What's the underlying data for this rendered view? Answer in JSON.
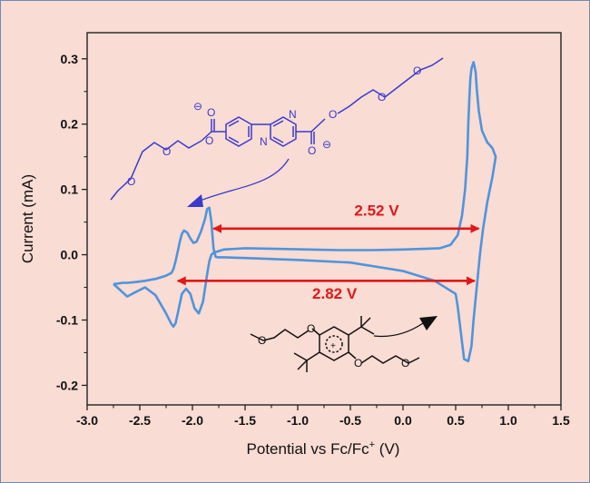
{
  "chart_data": {
    "type": "line",
    "title": "",
    "xlabel": "Potential vs Fc/Fc",
    "xlabel_sup": "+",
    "xlabel_unit": " (V)",
    "ylabel": "Current (mA)",
    "xlim": [
      -3.0,
      1.5
    ],
    "ylim": [
      -0.23,
      0.34
    ],
    "x_ticks": [
      -3.0,
      -2.5,
      -2.0,
      -1.5,
      -1.0,
      -0.5,
      0.0,
      0.5,
      1.0,
      1.5
    ],
    "x_tick_labels": [
      "-3.0",
      "-2.5",
      "-2.0",
      "-1.5",
      "-1.0",
      "-0.5",
      "0.0",
      "0.5",
      "1.0",
      "1.5"
    ],
    "y_ticks": [
      -0.2,
      -0.1,
      0.0,
      0.1,
      0.2,
      0.3
    ],
    "y_tick_labels": [
      "-0.2",
      "-0.1",
      "0.0",
      "0.1",
      "0.2",
      "0.3"
    ],
    "grid": false,
    "line_color": "#4f94dd",
    "series": [
      {
        "x": [
          -2.75,
          -2.7,
          -2.62,
          -2.55,
          -2.45,
          -2.35,
          -2.25,
          -2.2,
          -2.18,
          -2.16,
          -2.14,
          -2.1,
          -2.06,
          -2.02,
          -1.98,
          -1.94,
          -1.9,
          -1.86,
          -1.84,
          -1.82,
          -1.8,
          -1.7,
          -1.5,
          -1.2,
          -0.9,
          -0.6,
          -0.3,
          0.0,
          0.2,
          0.35,
          0.45,
          0.52,
          0.56,
          0.59,
          0.61,
          0.62,
          0.63,
          0.64,
          0.65,
          0.67,
          0.69,
          0.7,
          0.72,
          0.75,
          0.8,
          0.85,
          0.88,
          0.85,
          0.8,
          0.76,
          0.73,
          0.7,
          0.67,
          0.65,
          0.62,
          0.58,
          0.55,
          0.52,
          0.5,
          0.3,
          0.0,
          -0.5,
          -1.0,
          -1.5,
          -1.7,
          -1.76,
          -1.78,
          -1.8,
          -1.82,
          -1.84,
          -1.86,
          -1.88,
          -1.92,
          -1.96,
          -1.99,
          -2.02,
          -2.05,
          -2.08,
          -2.1,
          -2.12,
          -2.14,
          -2.16,
          -2.18,
          -2.2,
          -2.25,
          -2.35,
          -2.45,
          -2.55,
          -2.62,
          -2.66,
          -2.7,
          -2.75
        ],
        "y": [
          -0.045,
          -0.052,
          -0.064,
          -0.058,
          -0.05,
          -0.062,
          -0.09,
          -0.106,
          -0.11,
          -0.105,
          -0.09,
          -0.06,
          -0.052,
          -0.06,
          -0.082,
          -0.09,
          -0.072,
          -0.03,
          -0.01,
          0.0,
          0.003,
          0.008,
          0.01,
          0.009,
          0.008,
          0.007,
          0.007,
          0.008,
          0.009,
          0.01,
          0.015,
          0.03,
          0.06,
          0.1,
          0.15,
          0.2,
          0.24,
          0.27,
          0.285,
          0.295,
          0.28,
          0.255,
          0.22,
          0.19,
          0.172,
          0.163,
          0.15,
          0.12,
          0.08,
          0.04,
          0.0,
          -0.05,
          -0.1,
          -0.14,
          -0.163,
          -0.16,
          -0.12,
          -0.08,
          -0.06,
          -0.04,
          -0.025,
          -0.012,
          -0.008,
          -0.005,
          -0.004,
          -0.004,
          -0.003,
          0.01,
          0.05,
          0.072,
          0.07,
          0.055,
          0.035,
          0.02,
          0.018,
          0.025,
          0.034,
          0.037,
          0.032,
          0.02,
          0.005,
          -0.01,
          -0.022,
          -0.028,
          -0.032,
          -0.037,
          -0.04,
          -0.042,
          -0.043,
          -0.043,
          -0.044,
          -0.045
        ]
      }
    ],
    "annotations": [
      {
        "text": "2.52 V",
        "x1": -1.8,
        "x2": 0.72,
        "y": 0.04,
        "label_x": -0.25,
        "label_y": 0.06,
        "color": "#e01818"
      },
      {
        "text": "2.82 V",
        "x1": -2.14,
        "x2": 0.68,
        "y": -0.04,
        "label_x": -0.65,
        "label_y": -0.067,
        "color": "#e01818"
      }
    ]
  },
  "molecule_top": {
    "atoms": {
      "n_left": "N",
      "n_right": "N",
      "o_charge_left": "⊖",
      "o_charge_right": "⊖",
      "o_a": "O",
      "o_b": "O",
      "o_c": "O",
      "o_d": "O",
      "o_e": "O",
      "o_f": "O",
      "o_g": "O",
      "o_h": "O",
      "o_i": "O",
      "o_j": "O"
    },
    "color": "#3a3acc"
  },
  "molecule_bottom": {
    "atoms": {
      "o_a": "O",
      "o_b": "O",
      "o_c": "O",
      "o_d": "O",
      "charge": "+"
    },
    "color": "#111111"
  }
}
